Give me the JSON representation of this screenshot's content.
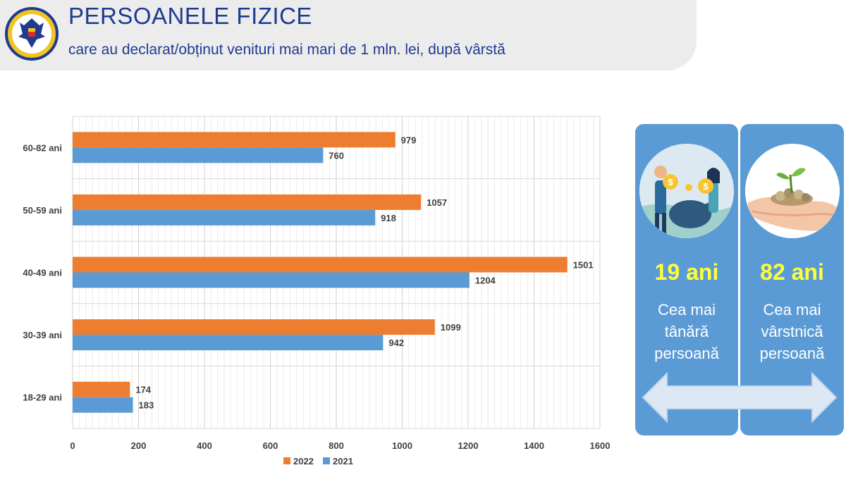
{
  "header": {
    "title": "PERSOANELE FIZICE",
    "subtitle": "care au declarat/obținut venituri mai mari de 1 mln. lei, după vârstă"
  },
  "chart_data": {
    "type": "bar",
    "orientation": "horizontal",
    "categories": [
      "60-82 ani",
      "50-59 ani",
      "40-49 ani",
      "30-39 ani",
      "18-29 ani"
    ],
    "series": [
      {
        "name": "2022",
        "color": "#ed7d31",
        "values": [
          979,
          1057,
          1501,
          1099,
          174
        ]
      },
      {
        "name": "2021",
        "color": "#5b9bd5",
        "values": [
          760,
          918,
          1204,
          942,
          183
        ]
      }
    ],
    "xlim": [
      0,
      1600
    ],
    "xticks": [
      0,
      200,
      400,
      600,
      800,
      1000,
      1200,
      1400,
      1600
    ],
    "grid": true,
    "legend_position": "bottom",
    "data_labels": true
  },
  "panels": {
    "youngest": {
      "age": "19 ani",
      "lines": [
        "Cea mai",
        "tânără",
        "persoană"
      ],
      "icon": "people-savings-icon"
    },
    "oldest": {
      "age": "82 ani",
      "lines": [
        "Cea mai",
        "vârstnică",
        "persoană"
      ],
      "icon": "hands-coins-icon"
    }
  },
  "colors": {
    "title": "#1f3a93",
    "panel": "#5b9bd5",
    "age_text": "#ffff3b",
    "bar_2022": "#ed7d31",
    "bar_2021": "#5b9bd5"
  },
  "logo": {
    "icon": "coat-of-arms-logo"
  }
}
